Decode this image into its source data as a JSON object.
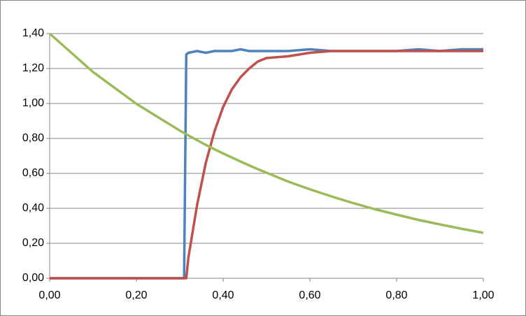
{
  "chart_data": {
    "type": "scatter",
    "x": [
      0,
      0.1,
      0.2,
      0.3,
      0.31,
      0.315,
      0.32,
      0.34,
      0.36,
      0.38,
      0.4,
      0.42,
      0.44,
      0.46,
      0.48,
      0.5,
      0.55,
      0.6,
      0.65,
      0.7,
      0.75,
      0.8,
      0.85,
      0.9,
      0.95,
      1.0
    ],
    "series": [
      {
        "color": "#4f81bd",
        "values": [
          0,
          0,
          0,
          0,
          0,
          1.28,
          1.29,
          1.3,
          1.29,
          1.3,
          1.3,
          1.3,
          1.31,
          1.3,
          1.3,
          1.3,
          1.3,
          1.31,
          1.3,
          1.3,
          1.3,
          1.3,
          1.31,
          1.3,
          1.31,
          1.31
        ]
      },
      {
        "color": "#c0504d",
        "values": [
          0,
          0,
          0,
          0,
          0,
          0,
          0.12,
          0.42,
          0.66,
          0.84,
          0.98,
          1.08,
          1.15,
          1.2,
          1.24,
          1.26,
          1.27,
          1.29,
          1.3,
          1.3,
          1.3,
          1.3,
          1.3,
          1.3,
          1.3,
          1.3
        ]
      },
      {
        "color": "#9bbb59",
        "values": [
          1.4,
          1.18,
          0.998,
          0.845,
          0.831,
          0.824,
          0.817,
          0.79,
          0.763,
          0.738,
          0.714,
          0.691,
          0.668,
          0.646,
          0.624,
          0.604,
          0.553,
          0.509,
          0.468,
          0.43,
          0.395,
          0.364,
          0.334,
          0.308,
          0.283,
          0.26
        ]
      }
    ],
    "xlim": [
      0,
      1
    ],
    "xticks": [
      {
        "value": 0,
        "label": "0,00"
      },
      {
        "value": 0.2,
        "label": "0,20"
      },
      {
        "value": 0.4,
        "label": "0,40"
      },
      {
        "value": 0.6,
        "label": "0,60"
      },
      {
        "value": 0.8,
        "label": "0,80"
      },
      {
        "value": 1,
        "label": "1,00"
      }
    ],
    "ylim": [
      0,
      1.4
    ],
    "yticks": [
      {
        "value": 0,
        "label": "0,00"
      },
      {
        "value": 0.2,
        "label": "0,20"
      },
      {
        "value": 0.4,
        "label": "0,40"
      },
      {
        "value": 0.6,
        "label": "0,60"
      },
      {
        "value": 0.8,
        "label": "0,80"
      },
      {
        "value": 1,
        "label": "1,00"
      },
      {
        "value": 1.2,
        "label": "1,20"
      },
      {
        "value": 1.4,
        "label": "1,40"
      }
    ],
    "grid": true
  }
}
